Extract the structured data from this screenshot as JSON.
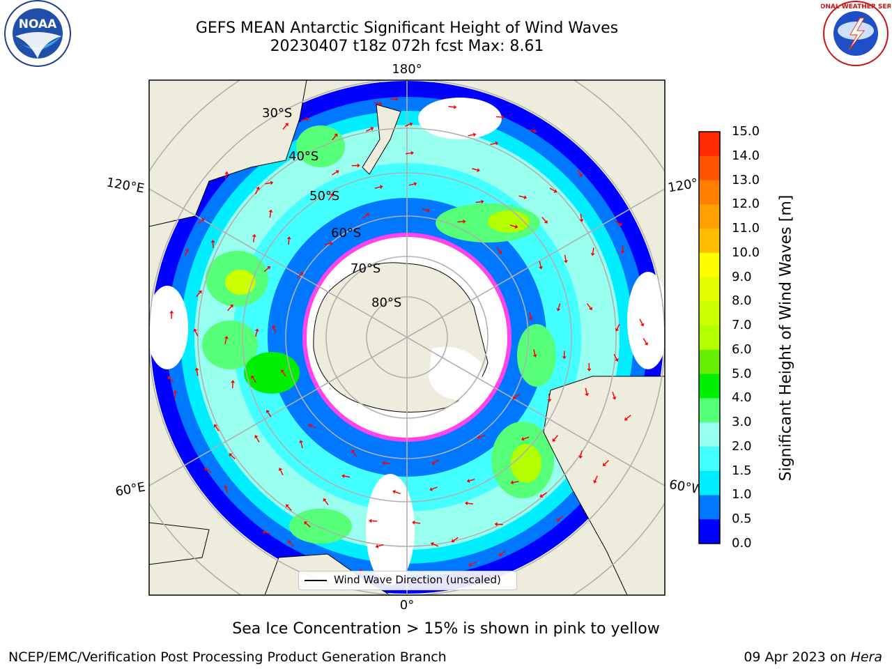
{
  "header": {
    "title_line1": "GEFS MEAN Antarctic Significant Height of Wind Waves",
    "title_line2": "20230407 t18z 072h fcst   Max: 8.61"
  },
  "logos": {
    "left_text": "NOAA",
    "right_text": "NATIONAL WEATHER SERVICE"
  },
  "map": {
    "lon_labels": {
      "top": "180°",
      "bottom": "0°",
      "left_upper": "120°E",
      "left_lower": "60°E",
      "right_upper": "120°",
      "right_lower": "60°W"
    },
    "lat_labels": [
      "30°S",
      "40°S",
      "50°S",
      "60°S",
      "70°S",
      "80°S"
    ],
    "legend_label": "Wind Wave Direction (unscaled)",
    "colors": {
      "land": "#eeecdc",
      "ice_white": "#ffffff",
      "ice_edge": "#ff44ee",
      "arrow": "#ff0000",
      "grid": "#b0b0b0"
    }
  },
  "colorbar": {
    "label": "Significant Height of Wind Waves [m]",
    "ticks": [
      "15.0",
      "14.0",
      "13.0",
      "12.0",
      "11.0",
      "10.0",
      "9.0",
      "8.0",
      "7.0",
      "6.0",
      "5.0",
      "4.0",
      "3.0",
      "2.0",
      "1.5",
      "1.0",
      "0.5",
      "0.0"
    ],
    "colors_top_to_bottom": [
      "#ff0000",
      "#ff2a00",
      "#ff5500",
      "#ff7f00",
      "#ff9f00",
      "#ffbf00",
      "#ffff00",
      "#e6ff00",
      "#ccff00",
      "#b3ff00",
      "#66ee00",
      "#00ee00",
      "#55ff77",
      "#99ffee",
      "#44ffff",
      "#00eeff",
      "#0077ff",
      "#0000ff"
    ]
  },
  "notes": {
    "sea_ice": "Sea Ice Concentration > 15% is shown in pink to yellow"
  },
  "footer": {
    "left": "NCEP/EMC/Verification Post Processing Product Generation Branch",
    "right_date": "09 Apr 2023 on",
    "right_machine": "Hera"
  }
}
